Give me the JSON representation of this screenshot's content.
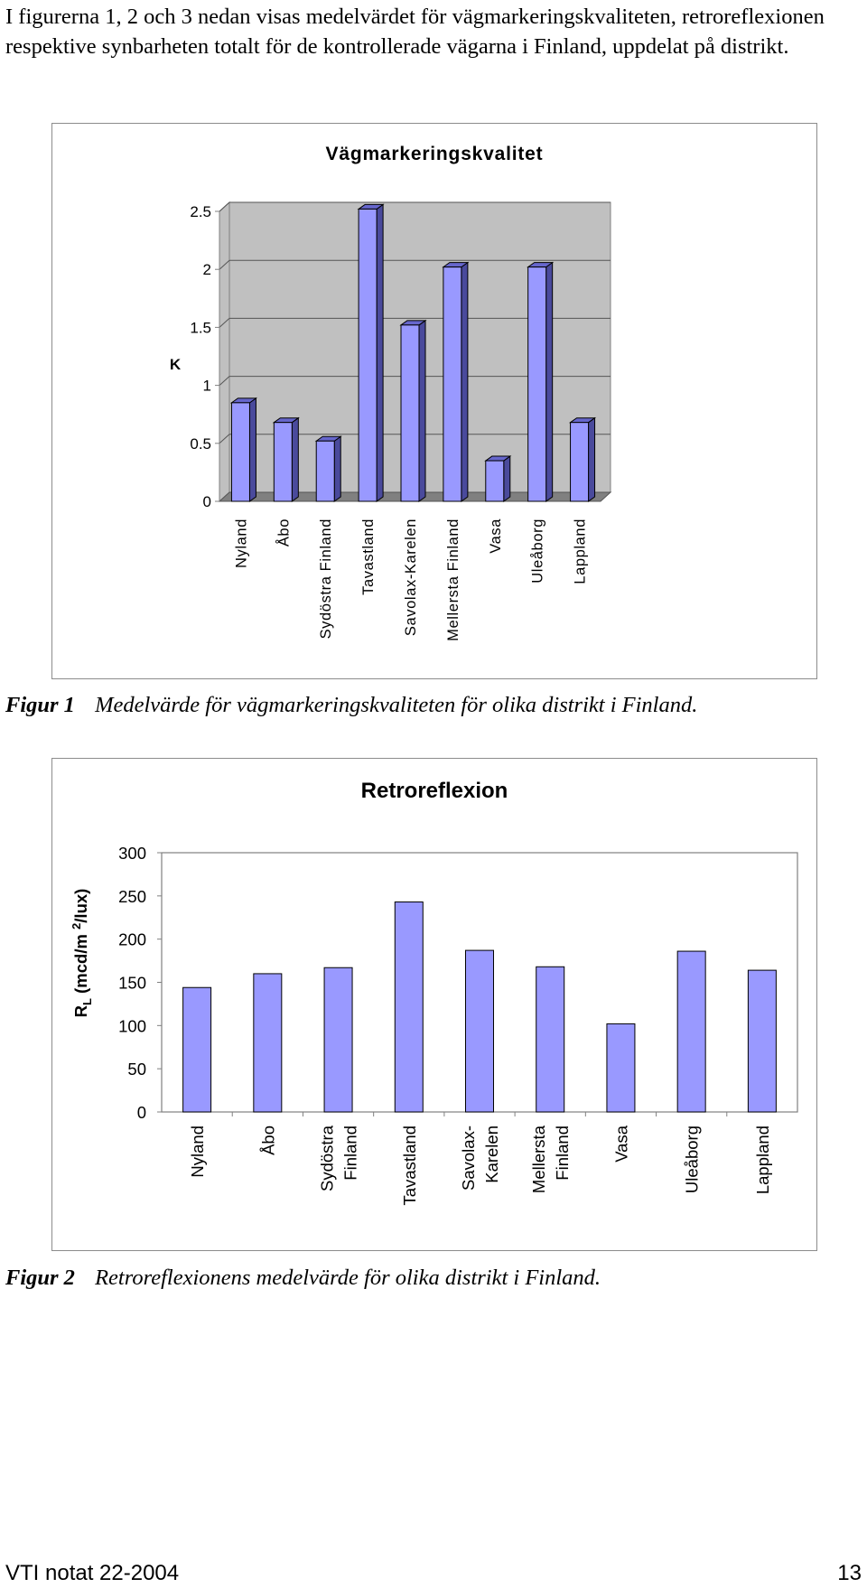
{
  "intro_text": "I figurerna 1, 2 och 3 nedan visas medelvärdet för vägmarkeringskvaliteten, retroreflexionen respektive synbarheten totalt för de kontrollerade vägarna i Finland, uppdelat på distrikt.",
  "figures": [
    {
      "caption_label": "Figur 1",
      "caption_text": "Medelvärde för vägmarkeringskvaliteten för olika distrikt i Finland."
    },
    {
      "caption_label": "Figur 2",
      "caption_text": "Retroreflexionens medelvärde för olika distrikt i Finland."
    }
  ],
  "footer": {
    "left": "VTI notat 22-2004",
    "right": "13"
  },
  "chart_data": [
    {
      "type": "bar",
      "title": "Vägmarkeringskvalitet",
      "ylabel": "K",
      "xlabel": "",
      "categories": [
        "Nyland",
        "Åbo",
        "Sydöstra Finland",
        "Tavastland",
        "Savolax-Karelen",
        "Mellersta Finland",
        "Vasa",
        "Uleåborg",
        "Lappland"
      ],
      "values": [
        0.85,
        0.68,
        0.52,
        2.52,
        1.52,
        2.02,
        0.35,
        2.02,
        0.68
      ],
      "yticks": [
        "0",
        "0.5",
        "1",
        "1.5",
        "2",
        "2.5"
      ],
      "ylim": [
        0,
        2.5
      ],
      "grid": true,
      "style": "3d",
      "bar_color": "#9999ff",
      "bar_side_color": "#4a4a9c",
      "bar_top_color": "#6666cc",
      "wall_color": "#c0c0c0",
      "floor_color": "#808080"
    },
    {
      "type": "bar",
      "title": "Retroreflexion",
      "ylabel": "R",
      "ylabel_sub": "L",
      "ylabel_rest": " (mcd/m ",
      "ylabel_sup": "2",
      "ylabel_end": "/lux)",
      "xlabel": "",
      "categories": [
        [
          "Nyland"
        ],
        [
          "Åbo"
        ],
        [
          "Sydöstra",
          "Finland"
        ],
        [
          "Tavastland"
        ],
        [
          "Savolax-",
          "Karelen"
        ],
        [
          "Mellersta",
          "Finland"
        ],
        [
          "Vasa"
        ],
        [
          "Uleåborg"
        ],
        [
          "Lappland"
        ]
      ],
      "values": [
        144,
        160,
        167,
        243,
        187,
        168,
        102,
        186,
        164
      ],
      "yticks": [
        "0",
        "50",
        "100",
        "150",
        "200",
        "250",
        "300"
      ],
      "ylim": [
        0,
        300
      ],
      "grid": false,
      "bar_color": "#9999ff",
      "plot_bg": "#ffffff",
      "plot_border": "#808080"
    }
  ]
}
